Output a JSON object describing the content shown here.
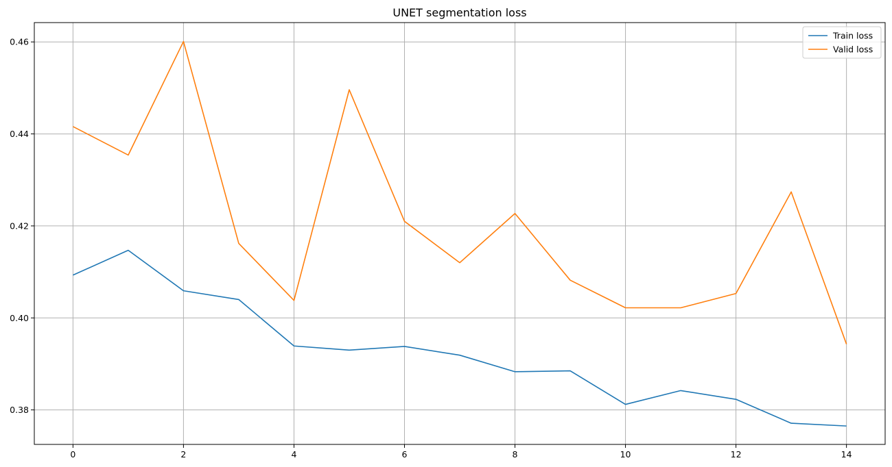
{
  "chart_data": {
    "type": "line",
    "title": "UNET segmentation loss",
    "xlabel": "",
    "ylabel": "",
    "x": [
      0,
      1,
      2,
      3,
      4,
      5,
      6,
      7,
      8,
      9,
      10,
      11,
      12,
      13,
      14
    ],
    "xlim": [
      -0.7,
      14.7
    ],
    "ylim": [
      0.3725,
      0.4642
    ],
    "xticks": [
      0,
      2,
      4,
      6,
      8,
      10,
      12,
      14
    ],
    "xtick_labels": [
      "0",
      "2",
      "4",
      "6",
      "8",
      "10",
      "12",
      "14"
    ],
    "yticks": [
      0.38,
      0.4,
      0.42,
      0.44,
      0.46
    ],
    "ytick_labels": [
      "0.38",
      "0.40",
      "0.42",
      "0.44",
      "0.46"
    ],
    "grid": true,
    "legend_position": "top-right",
    "series": [
      {
        "name": "Train loss",
        "color": "#1f77b4",
        "values": [
          0.4093,
          0.4147,
          0.4059,
          0.404,
          0.3939,
          0.393,
          0.3938,
          0.3919,
          0.3883,
          0.3885,
          0.3812,
          0.3842,
          0.3823,
          0.3771,
          0.3765
        ]
      },
      {
        "name": "Valid loss",
        "color": "#ff7f0e",
        "values": [
          0.4416,
          0.4354,
          0.4601,
          0.4162,
          0.4038,
          0.4496,
          0.421,
          0.412,
          0.4227,
          0.4082,
          0.4022,
          0.4022,
          0.4053,
          0.4274,
          0.3943
        ]
      }
    ]
  }
}
